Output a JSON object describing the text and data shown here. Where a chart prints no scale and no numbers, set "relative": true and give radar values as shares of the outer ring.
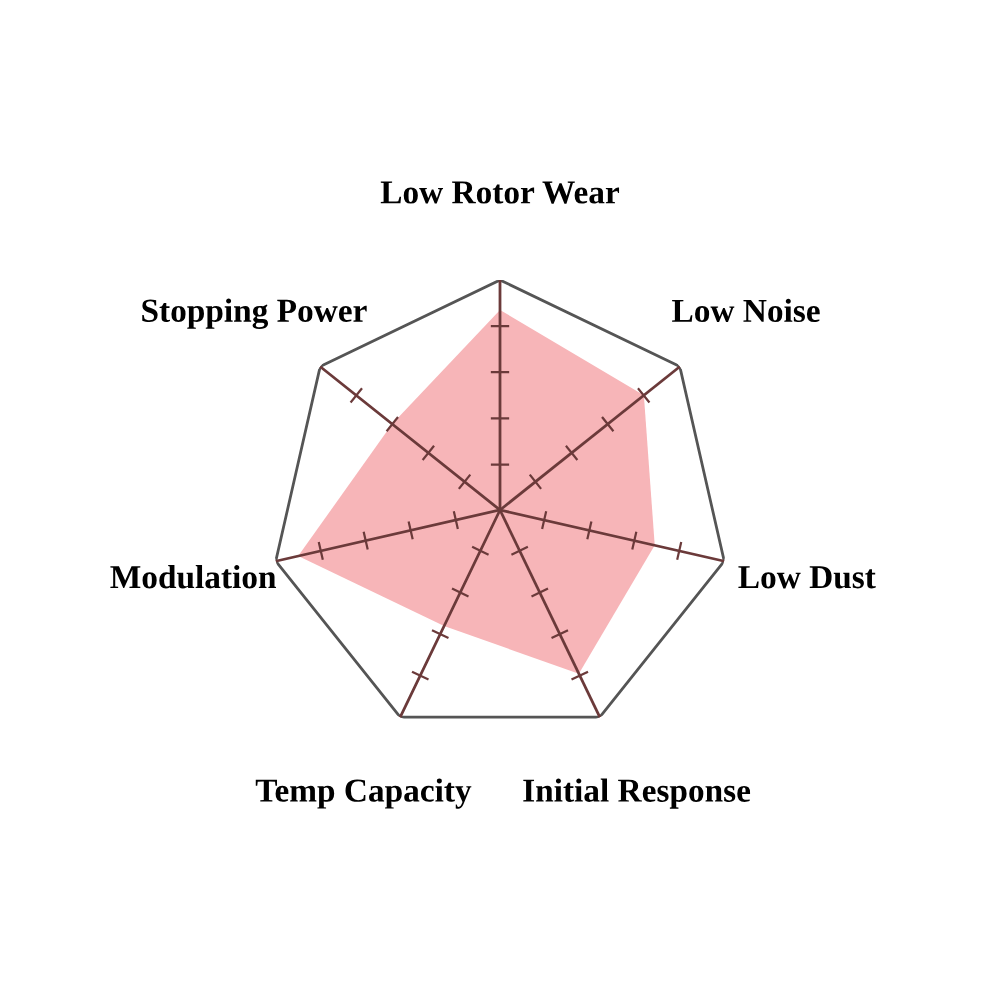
{
  "chart_data": {
    "type": "radar",
    "relative": true,
    "grid": true,
    "categories": [
      "Low Rotor Wear",
      "Low Noise",
      "Low Dust",
      "Initial Response",
      "Temp Capacity",
      "Modulation",
      "Stopping Power"
    ],
    "series": [
      {
        "color": "#f7b5b8",
        "values": [
          0.87,
          0.8,
          0.69,
          0.79,
          0.56,
          0.9,
          0.6
        ]
      }
    ]
  }
}
